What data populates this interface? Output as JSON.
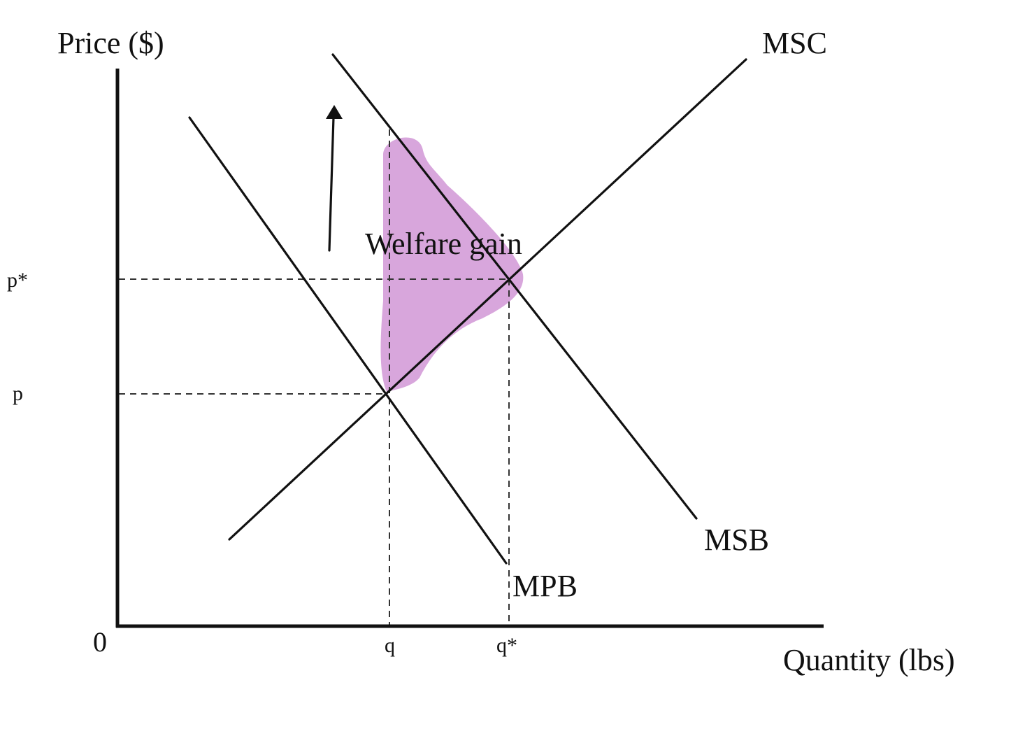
{
  "axes": {
    "y_title": "Price ($)",
    "x_title": "Quantity (lbs)",
    "origin": "0"
  },
  "curves": {
    "msc": "MSC",
    "msb": "MSB",
    "mpb": "MPB"
  },
  "ticks": {
    "p_star": "p*",
    "p": "p",
    "q": "q",
    "q_star": "q*"
  },
  "area": {
    "label": "Welfare gain",
    "color": "#d8a6dc"
  },
  "colors": {
    "line": "#111111",
    "guide": "#333333"
  },
  "arrow": {
    "direction": "up",
    "meaning": "shift from MPB to MSB"
  }
}
